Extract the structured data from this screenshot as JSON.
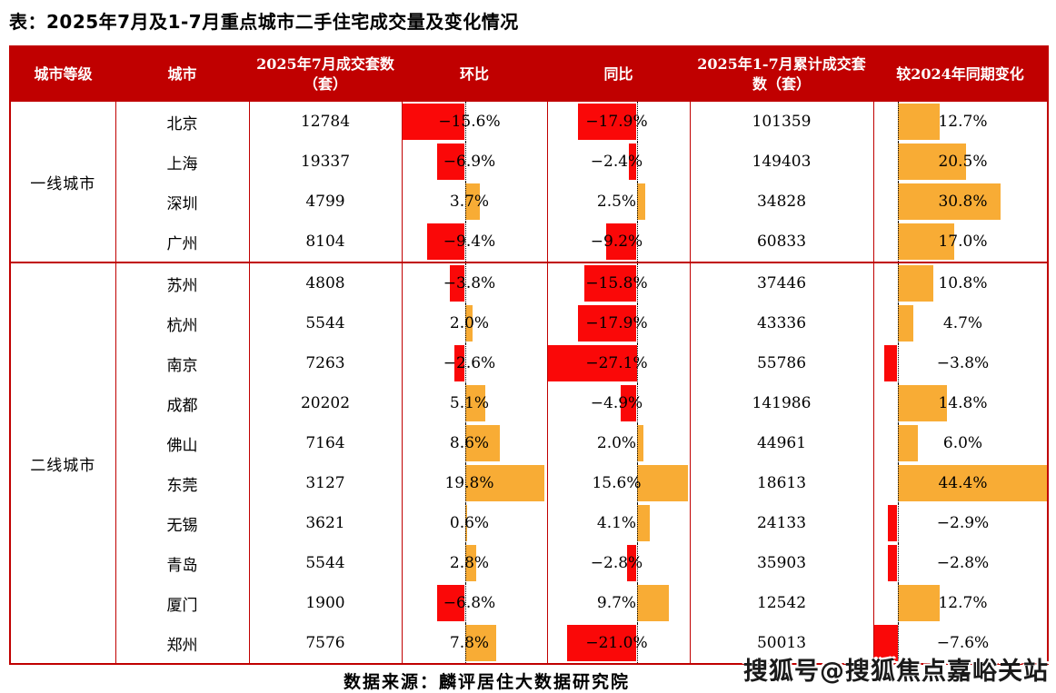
{
  "title": "表：2025年7月及1-7月重点城市二手住宅成交量及变化情况",
  "table": {
    "headers": [
      "城市等级",
      "城市",
      "2025年7月成交套数（套）",
      "环比",
      "同比",
      "2025年1-7月累计成交套数（套）",
      "较2024年同期变化"
    ],
    "groups": [
      {
        "tier": "一线城市",
        "cities": [
          {
            "name": "北京",
            "jul_sales": "12784",
            "mom_pct": -15.6,
            "yoy_pct": -17.9,
            "cum_sales": "101359",
            "chg_pct": 12.7
          },
          {
            "name": "上海",
            "jul_sales": "19337",
            "mom_pct": -6.9,
            "yoy_pct": -2.4,
            "cum_sales": "149403",
            "chg_pct": 20.5
          },
          {
            "name": "深圳",
            "jul_sales": "4799",
            "mom_pct": 3.7,
            "yoy_pct": 2.5,
            "cum_sales": "34828",
            "chg_pct": 30.8
          },
          {
            "name": "广州",
            "jul_sales": "8104",
            "mom_pct": -9.4,
            "yoy_pct": -9.2,
            "cum_sales": "60833",
            "chg_pct": 17.0
          }
        ]
      },
      {
        "tier": "二线城市",
        "cities": [
          {
            "name": "苏州",
            "jul_sales": "4808",
            "mom_pct": -3.8,
            "yoy_pct": -15.8,
            "cum_sales": "37446",
            "chg_pct": 10.8
          },
          {
            "name": "杭州",
            "jul_sales": "5544",
            "mom_pct": 2.0,
            "yoy_pct": -17.9,
            "cum_sales": "43336",
            "chg_pct": 4.7
          },
          {
            "name": "南京",
            "jul_sales": "7263",
            "mom_pct": -2.6,
            "yoy_pct": -27.1,
            "cum_sales": "55786",
            "chg_pct": -3.8
          },
          {
            "name": "成都",
            "jul_sales": "20202",
            "mom_pct": 5.1,
            "yoy_pct": -4.9,
            "cum_sales": "141986",
            "chg_pct": 14.8
          },
          {
            "name": "佛山",
            "jul_sales": "7164",
            "mom_pct": 8.6,
            "yoy_pct": 2.0,
            "cum_sales": "44961",
            "chg_pct": 6.0
          },
          {
            "name": "东莞",
            "jul_sales": "3127",
            "mom_pct": 19.8,
            "yoy_pct": 15.6,
            "cum_sales": "18613",
            "chg_pct": 44.4
          },
          {
            "name": "无锡",
            "jul_sales": "3621",
            "mom_pct": 0.6,
            "yoy_pct": 4.1,
            "cum_sales": "24133",
            "chg_pct": -2.9
          },
          {
            "name": "青岛",
            "jul_sales": "5544",
            "mom_pct": 2.8,
            "yoy_pct": -2.8,
            "cum_sales": "35903",
            "chg_pct": -2.8
          },
          {
            "name": "厦门",
            "jul_sales": "1900",
            "mom_pct": -6.8,
            "yoy_pct": 9.7,
            "cum_sales": "12542",
            "chg_pct": 12.7
          },
          {
            "name": "郑州",
            "jul_sales": "7576",
            "mom_pct": 7.8,
            "yoy_pct": -21.0,
            "cum_sales": "50013",
            "chg_pct": -7.6
          }
        ]
      }
    ]
  },
  "footer": {
    "source": "数据来源：麟评居住大数据研究院"
  },
  "watermark": "搜狐号@搜狐焦点嘉峪关站",
  "colors": {
    "header_red": "#C00000",
    "bar_red": "#FA0808",
    "bar_orange": "#F8AC35",
    "baseline_black": "#000000"
  },
  "chart_data": {
    "type": "table",
    "title": "2025年7月及1-7月重点城市二手住宅成交量及变化情况",
    "columns": [
      "城市等级",
      "城市",
      "2025年7月成交套数（套）",
      "环比",
      "同比",
      "2025年1-7月累计成交套数（套）",
      "较2024年同期变化"
    ],
    "percent_columns": [
      "环比",
      "同比",
      "较2024年同期变化"
    ],
    "bar_style": "in-cell horizontal bars from dotted zero baseline; negative=red left, positive=orange right",
    "rows": [
      [
        "一线城市",
        "北京",
        12784,
        -15.6,
        -17.9,
        101359,
        12.7
      ],
      [
        "一线城市",
        "上海",
        19337,
        -6.9,
        -2.4,
        149403,
        20.5
      ],
      [
        "一线城市",
        "深圳",
        4799,
        3.7,
        2.5,
        34828,
        30.8
      ],
      [
        "一线城市",
        "广州",
        8104,
        -9.4,
        -9.2,
        60833,
        17.0
      ],
      [
        "二线城市",
        "苏州",
        4808,
        -3.8,
        -15.8,
        37446,
        10.8
      ],
      [
        "二线城市",
        "杭州",
        5544,
        2.0,
        -17.9,
        43336,
        4.7
      ],
      [
        "二线城市",
        "南京",
        7263,
        -2.6,
        -27.1,
        55786,
        -3.8
      ],
      [
        "二线城市",
        "成都",
        20202,
        5.1,
        -4.9,
        141986,
        14.8
      ],
      [
        "二线城市",
        "佛山",
        7164,
        8.6,
        2.0,
        44961,
        6.0
      ],
      [
        "二线城市",
        "东莞",
        3127,
        19.8,
        15.6,
        18613,
        44.4
      ],
      [
        "二线城市",
        "无锡",
        3621,
        0.6,
        4.1,
        24133,
        -2.9
      ],
      [
        "二线城市",
        "青岛",
        5544,
        2.8,
        -2.8,
        35903,
        -2.8
      ],
      [
        "二线城市",
        "厦门",
        1900,
        -6.8,
        9.7,
        12542,
        12.7
      ],
      [
        "二线城市",
        "郑州",
        7576,
        7.8,
        -21.0,
        50013,
        -7.6
      ]
    ],
    "source": "麟评居住大数据研究院"
  }
}
